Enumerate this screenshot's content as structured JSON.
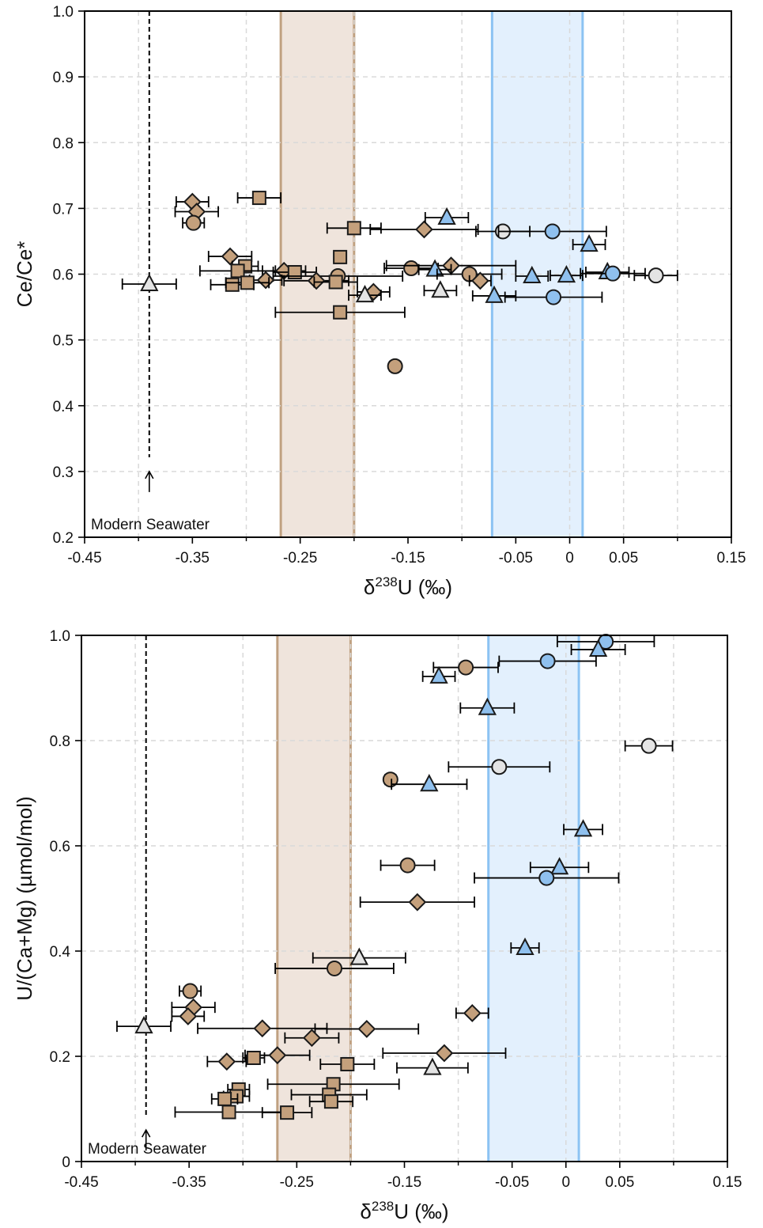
{
  "figure": {
    "styles": {
      "brown_fill": "#c4a07c",
      "blue_fill": "#8fc0ee",
      "gray_fill": "#e4e4e4",
      "brown_band_fill": "#efe4dc",
      "brown_band_line": "#c0a181",
      "blue_band_fill": "#e3f0fd",
      "blue_band_line": "#8cc3f3",
      "grid": "#d9d9d9",
      "marker_edge": "#1a1a1a"
    }
  },
  "chart_data": [
    {
      "type": "scatter",
      "xlabel_main": "δ",
      "xlabel_sup": "238",
      "xlabel_rest": "U (‰)",
      "ylabel": "Ce/Ce*",
      "xlim": [
        -0.45,
        0.15
      ],
      "ylim": [
        0.2,
        1.0
      ],
      "xtick_values": [
        -0.45,
        -0.35,
        -0.25,
        -0.15,
        -0.05,
        0,
        0.05,
        0.15
      ],
      "xtick_labels": [
        "-0.45",
        "-0.35",
        "-0.25",
        "-0.15",
        "-0.05",
        "0",
        "0.05",
        "0.15"
      ],
      "ytick_values": [
        0.2,
        0.3,
        0.4,
        0.5,
        0.6,
        0.7,
        0.8,
        0.9,
        1.0
      ],
      "ytick_labels": [
        "0.2",
        "0.3",
        "0.4",
        "0.5",
        "0.6",
        "0.7",
        "0.8",
        "0.9",
        "1.0"
      ],
      "grid_x": [
        -0.4,
        -0.3,
        -0.2,
        -0.1,
        0.0,
        0.05,
        0.1
      ],
      "grid_y": [
        0.3,
        0.4,
        0.5,
        0.6,
        0.7,
        0.8,
        0.9
      ],
      "grid": true,
      "bands": [
        {
          "x0": -0.268,
          "x1": -0.2,
          "color": "brown"
        },
        {
          "x0": -0.072,
          "x1": 0.012,
          "color": "blue"
        }
      ],
      "modern_seawater": {
        "x": -0.39,
        "label": "Modern Seawater",
        "arrow_y": [
          0.3,
          0.25
        ]
      },
      "points": [
        {
          "marker": "triangle",
          "color": "gray",
          "x": -0.39,
          "y": 0.585,
          "xerr": 0.025
        },
        {
          "marker": "diamond",
          "color": "brown",
          "x": -0.35,
          "y": 0.71,
          "xerr": 0.015
        },
        {
          "marker": "diamond",
          "color": "brown",
          "x": -0.346,
          "y": 0.695,
          "xerr": 0.02
        },
        {
          "marker": "circle",
          "color": "brown",
          "x": -0.349,
          "y": 0.678,
          "xerr": 0.01
        },
        {
          "marker": "square",
          "color": "brown",
          "x": -0.288,
          "y": 0.716,
          "xerr": 0.02
        },
        {
          "marker": "square",
          "color": "brown",
          "x": -0.2,
          "y": 0.67,
          "xerr": 0.025
        },
        {
          "marker": "diamond",
          "color": "brown",
          "x": -0.135,
          "y": 0.668,
          "xerr": 0.05
        },
        {
          "marker": "triangle",
          "color": "blue",
          "x": -0.114,
          "y": 0.686,
          "xerr": 0.02
        },
        {
          "marker": "circle",
          "color": "gray",
          "x": -0.062,
          "y": 0.665,
          "xerr": 0.025
        },
        {
          "marker": "circle",
          "color": "blue",
          "x": -0.016,
          "y": 0.665,
          "xerr": 0.05
        },
        {
          "marker": "triangle",
          "color": "blue",
          "x": 0.018,
          "y": 0.645,
          "xerr": 0.015
        },
        {
          "marker": "diamond",
          "color": "brown",
          "x": -0.315,
          "y": 0.627,
          "xerr": 0.02
        },
        {
          "marker": "square",
          "color": "brown",
          "x": -0.301,
          "y": 0.612,
          "xerr": 0.012
        },
        {
          "marker": "square",
          "color": "brown",
          "x": -0.308,
          "y": 0.605,
          "xerr": 0.035
        },
        {
          "marker": "square",
          "color": "brown",
          "x": -0.213,
          "y": 0.626,
          "xerr": 0.0
        },
        {
          "marker": "circle",
          "color": "brown",
          "x": -0.147,
          "y": 0.609,
          "xerr": 0.025
        },
        {
          "marker": "diamond",
          "color": "brown",
          "x": -0.11,
          "y": 0.613,
          "xerr": 0.06
        },
        {
          "marker": "triangle",
          "color": "blue",
          "x": -0.125,
          "y": 0.607,
          "xerr": 0.015
        },
        {
          "marker": "circle",
          "color": "brown",
          "x": -0.093,
          "y": 0.6,
          "xerr": 0.03
        },
        {
          "marker": "diamond",
          "color": "brown",
          "x": -0.083,
          "y": 0.59,
          "xerr": 0.01
        },
        {
          "marker": "triangle",
          "color": "blue",
          "x": -0.035,
          "y": 0.597,
          "xerr": 0.015
        },
        {
          "marker": "triangle",
          "color": "blue",
          "x": -0.003,
          "y": 0.598,
          "xerr": 0.015
        },
        {
          "marker": "triangle",
          "color": "blue",
          "x": 0.035,
          "y": 0.603,
          "xerr": 0.02
        },
        {
          "marker": "circle",
          "color": "blue",
          "x": 0.04,
          "y": 0.601,
          "xerr": 0.03
        },
        {
          "marker": "circle",
          "color": "gray",
          "x": 0.08,
          "y": 0.598,
          "xerr": 0.02
        },
        {
          "marker": "diamond",
          "color": "brown",
          "x": -0.265,
          "y": 0.605,
          "xerr": 0.02
        },
        {
          "marker": "square",
          "color": "brown",
          "x": -0.255,
          "y": 0.603,
          "xerr": 0.02
        },
        {
          "marker": "circle",
          "color": "brown",
          "x": -0.215,
          "y": 0.597,
          "xerr": 0.06
        },
        {
          "marker": "diamond",
          "color": "brown",
          "x": -0.282,
          "y": 0.591,
          "xerr": 0.015
        },
        {
          "marker": "diamond",
          "color": "brown",
          "x": -0.235,
          "y": 0.59,
          "xerr": 0.03
        },
        {
          "marker": "square",
          "color": "brown",
          "x": -0.313,
          "y": 0.584,
          "xerr": 0.02
        },
        {
          "marker": "square",
          "color": "brown",
          "x": -0.299,
          "y": 0.587,
          "xerr": 0.02
        },
        {
          "marker": "square",
          "color": "brown",
          "x": -0.217,
          "y": 0.588,
          "xerr": 0.02
        },
        {
          "marker": "diamond",
          "color": "brown",
          "x": -0.182,
          "y": 0.573,
          "xerr": 0.015
        },
        {
          "marker": "triangle",
          "color": "gray",
          "x": -0.19,
          "y": 0.568,
          "xerr": 0.015
        },
        {
          "marker": "triangle",
          "color": "gray",
          "x": -0.12,
          "y": 0.575,
          "xerr": 0.015
        },
        {
          "marker": "triangle",
          "color": "blue",
          "x": -0.07,
          "y": 0.567,
          "xerr": 0.02
        },
        {
          "marker": "circle",
          "color": "blue",
          "x": -0.015,
          "y": 0.565,
          "xerr": 0.045
        },
        {
          "marker": "square",
          "color": "brown",
          "x": -0.213,
          "y": 0.542,
          "xerr": 0.06
        },
        {
          "marker": "circle",
          "color": "brown",
          "x": -0.162,
          "y": 0.46,
          "xerr": 0.005
        }
      ]
    },
    {
      "type": "scatter",
      "xlabel_main": "δ",
      "xlabel_sup": "238",
      "xlabel_rest": "U (‰)",
      "ylabel": "U/(Ca+Mg) (µmol/mol)",
      "xlim": [
        -0.45,
        0.15
      ],
      "ylim": [
        0,
        1.0
      ],
      "xtick_values": [
        -0.45,
        -0.35,
        -0.25,
        -0.15,
        -0.05,
        0,
        0.05,
        0.15
      ],
      "xtick_labels": [
        "-0.45",
        "-0.35",
        "-0.25",
        "-0.15",
        "-0.05",
        "0",
        "0.05",
        "0.15"
      ],
      "ytick_values": [
        0,
        0.2,
        0.4,
        0.6,
        0.8,
        1.0
      ],
      "ytick_labels": [
        "0",
        "0.2",
        "0.4",
        "0.6",
        "0.8",
        "1.0"
      ],
      "grid_x": [
        -0.4,
        -0.3,
        -0.2,
        -0.1,
        0.0,
        0.05,
        0.1
      ],
      "grid_y": [
        0.2,
        0.4,
        0.6,
        0.8
      ],
      "grid": true,
      "bands": [
        {
          "x0": -0.268,
          "x1": -0.2,
          "color": "brown"
        },
        {
          "x0": -0.072,
          "x1": 0.012,
          "color": "blue"
        }
      ],
      "modern_seawater": {
        "x": -0.39,
        "label": "Modern Seawater",
        "arrow_y": [
          0.06,
          0.1
        ]
      },
      "points": [
        {
          "marker": "circle",
          "color": "blue",
          "x": 0.037,
          "y": 0.988,
          "xerr": 0.045
        },
        {
          "marker": "triangle",
          "color": "blue",
          "x": 0.03,
          "y": 0.973,
          "xerr": 0.025
        },
        {
          "marker": "circle",
          "color": "blue",
          "x": -0.017,
          "y": 0.951,
          "xerr": 0.045
        },
        {
          "marker": "circle",
          "color": "brown",
          "x": -0.093,
          "y": 0.939,
          "xerr": 0.03
        },
        {
          "marker": "triangle",
          "color": "blue",
          "x": -0.118,
          "y": 0.922,
          "xerr": 0.015
        },
        {
          "marker": "triangle",
          "color": "blue",
          "x": -0.073,
          "y": 0.862,
          "xerr": 0.025
        },
        {
          "marker": "circle",
          "color": "gray",
          "x": 0.077,
          "y": 0.79,
          "xerr": 0.022
        },
        {
          "marker": "circle",
          "color": "gray",
          "x": -0.062,
          "y": 0.75,
          "xerr": 0.047
        },
        {
          "marker": "circle",
          "color": "brown",
          "x": -0.163,
          "y": 0.726,
          "xerr": 0.005
        },
        {
          "marker": "triangle",
          "color": "blue",
          "x": -0.127,
          "y": 0.717,
          "xerr": 0.035
        },
        {
          "marker": "triangle",
          "color": "blue",
          "x": 0.016,
          "y": 0.631,
          "xerr": 0.018
        },
        {
          "marker": "circle",
          "color": "brown",
          "x": -0.147,
          "y": 0.563,
          "xerr": 0.025
        },
        {
          "marker": "triangle",
          "color": "blue",
          "x": -0.006,
          "y": 0.559,
          "xerr": 0.027
        },
        {
          "marker": "circle",
          "color": "blue",
          "x": -0.018,
          "y": 0.539,
          "xerr": 0.067
        },
        {
          "marker": "diamond",
          "color": "brown",
          "x": -0.138,
          "y": 0.493,
          "xerr": 0.053
        },
        {
          "marker": "triangle",
          "color": "blue",
          "x": -0.038,
          "y": 0.406,
          "xerr": 0.013
        },
        {
          "marker": "triangle",
          "color": "gray",
          "x": -0.192,
          "y": 0.387,
          "xerr": 0.043
        },
        {
          "marker": "circle",
          "color": "brown",
          "x": -0.215,
          "y": 0.367,
          "xerr": 0.055
        },
        {
          "marker": "circle",
          "color": "brown",
          "x": -0.349,
          "y": 0.324,
          "xerr": 0.01
        },
        {
          "marker": "diamond",
          "color": "brown",
          "x": -0.346,
          "y": 0.293,
          "xerr": 0.02
        },
        {
          "marker": "diamond",
          "color": "brown",
          "x": -0.087,
          "y": 0.282,
          "xerr": 0.015
        },
        {
          "marker": "diamond",
          "color": "brown",
          "x": -0.351,
          "y": 0.276,
          "xerr": 0.015
        },
        {
          "marker": "triangle",
          "color": "gray",
          "x": -0.392,
          "y": 0.257,
          "xerr": 0.025
        },
        {
          "marker": "diamond",
          "color": "brown",
          "x": -0.282,
          "y": 0.253,
          "xerr": 0.06
        },
        {
          "marker": "diamond",
          "color": "brown",
          "x": -0.185,
          "y": 0.252,
          "xerr": 0.048
        },
        {
          "marker": "diamond",
          "color": "brown",
          "x": -0.236,
          "y": 0.235,
          "xerr": 0.025
        },
        {
          "marker": "diamond",
          "color": "brown",
          "x": -0.113,
          "y": 0.206,
          "xerr": 0.057
        },
        {
          "marker": "diamond",
          "color": "brown",
          "x": -0.268,
          "y": 0.202,
          "xerr": 0.03
        },
        {
          "marker": "square",
          "color": "brown",
          "x": -0.29,
          "y": 0.197,
          "xerr": 0.01
        },
        {
          "marker": "diamond",
          "color": "brown",
          "x": -0.315,
          "y": 0.19,
          "xerr": 0.018
        },
        {
          "marker": "square",
          "color": "brown",
          "x": -0.203,
          "y": 0.185,
          "xerr": 0.025
        },
        {
          "marker": "triangle",
          "color": "gray",
          "x": -0.124,
          "y": 0.178,
          "xerr": 0.033
        },
        {
          "marker": "square",
          "color": "brown",
          "x": -0.216,
          "y": 0.147,
          "xerr": 0.061
        },
        {
          "marker": "square",
          "color": "brown",
          "x": -0.304,
          "y": 0.137,
          "xerr": 0.01
        },
        {
          "marker": "square",
          "color": "brown",
          "x": -0.22,
          "y": 0.127,
          "xerr": 0.035
        },
        {
          "marker": "square",
          "color": "brown",
          "x": -0.306,
          "y": 0.124,
          "xerr": 0.012
        },
        {
          "marker": "square",
          "color": "brown",
          "x": -0.317,
          "y": 0.119,
          "xerr": 0.012
        },
        {
          "marker": "square",
          "color": "brown",
          "x": -0.218,
          "y": 0.114,
          "xerr": 0.02
        },
        {
          "marker": "square",
          "color": "brown",
          "x": -0.313,
          "y": 0.094,
          "xerr": 0.05
        },
        {
          "marker": "square",
          "color": "brown",
          "x": -0.259,
          "y": 0.093,
          "xerr": 0.023
        }
      ]
    }
  ]
}
